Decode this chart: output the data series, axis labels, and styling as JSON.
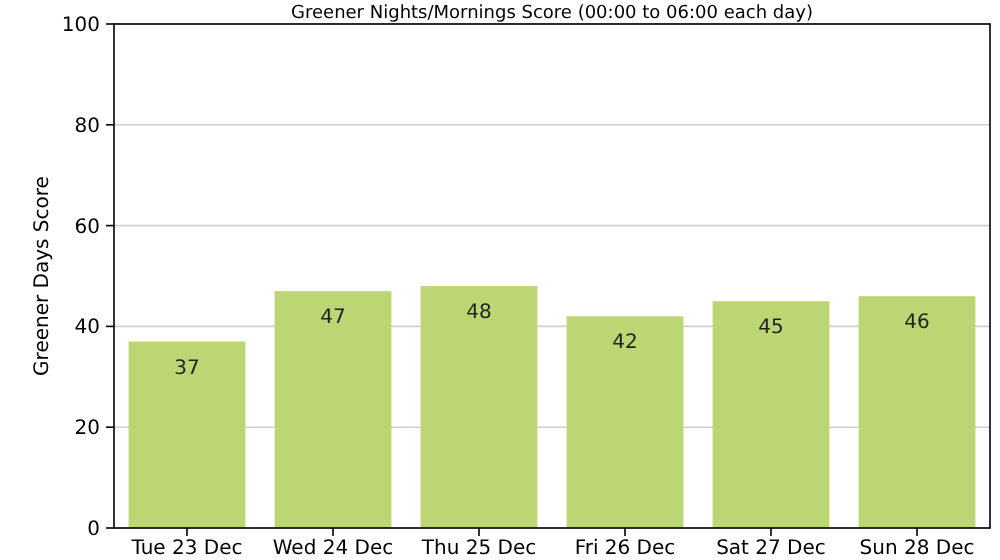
{
  "chart_data": {
    "type": "bar",
    "title": "Greener Nights/Mornings Score (00:00 to 06:00 each day)",
    "ylabel": "Greener Days Score",
    "categories": [
      "Tue 23 Dec",
      "Wed 24 Dec",
      "Thu 25 Dec",
      "Fri 26 Dec",
      "Sat 27 Dec",
      "Sun 28 Dec"
    ],
    "values": [
      37,
      47,
      48,
      42,
      45,
      46
    ],
    "color": "#bdd674",
    "ylim": [
      0,
      100
    ],
    "yticks": [
      0,
      20,
      40,
      60,
      80,
      100
    ],
    "grid": "y",
    "data_labels": true
  }
}
